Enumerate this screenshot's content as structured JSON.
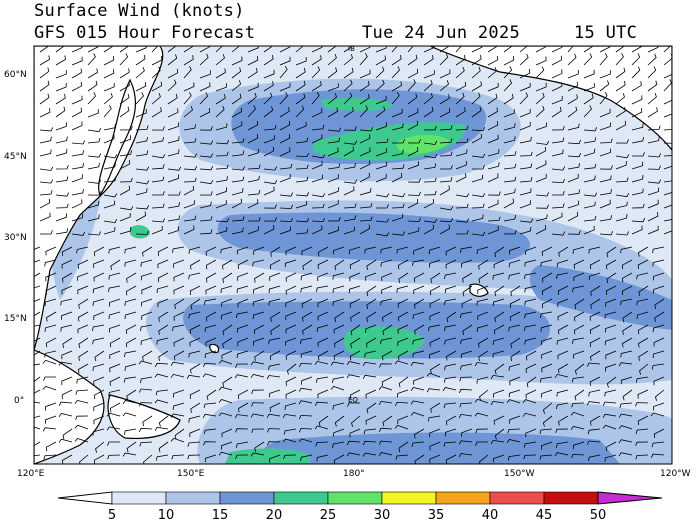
{
  "header": {
    "title": "Surface Wind (knots)",
    "subtitle": "GFS 015 Hour Forecast",
    "date": "Tue 24 Jun 2025",
    "time": "15 UTC"
  },
  "map": {
    "lat_labels": [
      "60°N",
      "45°N",
      "30°N",
      "15°N",
      "0°"
    ],
    "lon_labels": [
      "120°E",
      "150°E",
      "180°",
      "150°W",
      "120°W"
    ],
    "annotations": [
      "IB",
      "EQ"
    ]
  },
  "colorbar": {
    "labels": [
      "5",
      "10",
      "15",
      "20",
      "25",
      "30",
      "35",
      "40",
      "45",
      "50"
    ],
    "colors": [
      "#ffffff",
      "#dfe8f5",
      "#aec5ea",
      "#6e96d6",
      "#3ec98f",
      "#5fe36b",
      "#f3f526",
      "#f7a21c",
      "#ec4d4d",
      "#c40e0e",
      "#c72ad6"
    ]
  },
  "colors": {
    "water_light": "#dfe8f5",
    "land": "#ffffff"
  }
}
